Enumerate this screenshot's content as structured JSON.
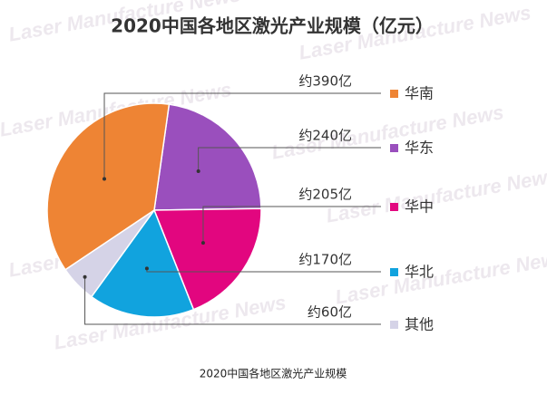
{
  "chart_data": {
    "type": "pie",
    "title": "2020中国各地区激光产业规模（亿元）",
    "categories": [
      "华南",
      "华东",
      "华中",
      "华北",
      "其他"
    ],
    "values": [
      390,
      240,
      205,
      170,
      60
    ],
    "value_labels": [
      "约390亿",
      "约240亿",
      "约205亿",
      "约170亿",
      "约60亿"
    ],
    "colors": [
      "#ee8434",
      "#9a4fbd",
      "#e2067f",
      "#11a3de",
      "#d5d3e7"
    ],
    "watermark": "Laser Manufacture News",
    "caption": "2020中国各地区激光产业规模"
  }
}
